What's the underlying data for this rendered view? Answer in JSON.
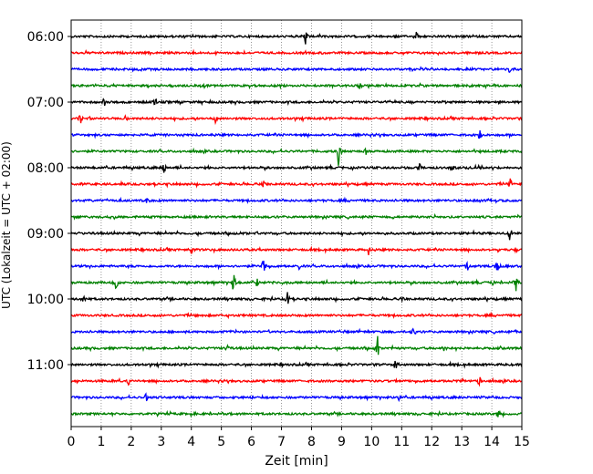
{
  "chart_data": {
    "type": "line",
    "title": "",
    "xlabel": "Zeit  [min]",
    "ylabel": "UTC (Lokalzeit = UTC + 02:00)",
    "xlim": [
      0,
      15
    ],
    "x_ticks": [
      0,
      1,
      2,
      3,
      4,
      5,
      6,
      7,
      8,
      9,
      10,
      11,
      12,
      13,
      14,
      15
    ],
    "x_tick_labels": [
      "0",
      "1",
      "2",
      "3",
      "4",
      "5",
      "6",
      "7",
      "8",
      "9",
      "10",
      "11",
      "12",
      "13",
      "14",
      "15"
    ],
    "y_tick_labels": [
      "06:00",
      "07:00",
      "08:00",
      "09:00",
      "10:00",
      "11:00"
    ],
    "grid": {
      "x": true,
      "y": false,
      "style": "dotted"
    },
    "trace_interval_min": 15,
    "trace_colors": [
      "#000000",
      "#ff0000",
      "#0000ff",
      "#008000"
    ],
    "traces": [
      {
        "start": "06:00",
        "color": "#000000",
        "events": [
          {
            "t": 7.8,
            "amp": 0.6
          },
          {
            "t": 11.5,
            "amp": 0.5
          }
        ]
      },
      {
        "start": "06:15",
        "color": "#ff0000",
        "events": []
      },
      {
        "start": "06:30",
        "color": "#0000ff",
        "events": [
          {
            "t": 14.6,
            "amp": 0.4
          }
        ]
      },
      {
        "start": "06:45",
        "color": "#008000",
        "events": [
          {
            "t": 9.6,
            "amp": 0.3
          }
        ]
      },
      {
        "start": "07:00",
        "color": "#000000",
        "events": [
          {
            "t": 1.1,
            "amp": 0.5
          },
          {
            "t": 2.8,
            "amp": 0.4
          }
        ]
      },
      {
        "start": "07:15",
        "color": "#ff0000",
        "events": [
          {
            "t": 0.3,
            "amp": 0.5
          },
          {
            "t": 1.8,
            "amp": 0.4
          },
          {
            "t": 4.8,
            "amp": 0.3
          }
        ]
      },
      {
        "start": "07:30",
        "color": "#0000ff",
        "events": [
          {
            "t": 13.6,
            "amp": 0.6
          }
        ]
      },
      {
        "start": "07:45",
        "color": "#008000",
        "events": [
          {
            "t": 8.9,
            "amp": 1.2
          },
          {
            "t": 9.8,
            "amp": 0.4
          }
        ]
      },
      {
        "start": "08:00",
        "color": "#000000",
        "events": [
          {
            "t": 3.1,
            "amp": 0.5
          },
          {
            "t": 11.6,
            "amp": 0.6
          },
          {
            "t": 12.7,
            "amp": 0.4
          }
        ]
      },
      {
        "start": "08:15",
        "color": "#ff0000",
        "events": [
          {
            "t": 6.4,
            "amp": 0.3
          },
          {
            "t": 14.6,
            "amp": 0.6
          }
        ]
      },
      {
        "start": "08:30",
        "color": "#0000ff",
        "events": [
          {
            "t": 2.5,
            "amp": 0.7
          },
          {
            "t": 13.6,
            "amp": 0.3
          }
        ]
      },
      {
        "start": "08:45",
        "color": "#008000",
        "events": []
      },
      {
        "start": "09:00",
        "color": "#000000",
        "events": [
          {
            "t": 6.3,
            "amp": 0.4
          },
          {
            "t": 14.6,
            "amp": 0.6
          }
        ]
      },
      {
        "start": "09:15",
        "color": "#ff0000",
        "events": [
          {
            "t": 4.0,
            "amp": 0.3
          },
          {
            "t": 9.9,
            "amp": 0.4
          },
          {
            "t": 14.2,
            "amp": 0.3
          }
        ]
      },
      {
        "start": "09:30",
        "color": "#0000ff",
        "events": [
          {
            "t": 6.4,
            "amp": 0.8
          },
          {
            "t": 7.6,
            "amp": 0.4
          },
          {
            "t": 13.2,
            "amp": 0.5
          },
          {
            "t": 14.2,
            "amp": 0.8
          }
        ]
      },
      {
        "start": "09:45",
        "color": "#008000",
        "events": [
          {
            "t": 1.5,
            "amp": 0.8
          },
          {
            "t": 5.4,
            "amp": 0.9
          },
          {
            "t": 6.2,
            "amp": 0.4
          },
          {
            "t": 14.0,
            "amp": 0.5
          },
          {
            "t": 14.8,
            "amp": 0.7
          }
        ]
      },
      {
        "start": "10:00",
        "color": "#000000",
        "events": [
          {
            "t": 0.4,
            "amp": 0.5
          },
          {
            "t": 7.2,
            "amp": 0.8
          },
          {
            "t": 11.0,
            "amp": 0.3
          }
        ]
      },
      {
        "start": "10:15",
        "color": "#ff0000",
        "events": []
      },
      {
        "start": "10:30",
        "color": "#0000ff",
        "events": [
          {
            "t": 11.4,
            "amp": 0.6
          },
          {
            "t": 14.8,
            "amp": 0.4
          }
        ]
      },
      {
        "start": "10:45",
        "color": "#008000",
        "events": [
          {
            "t": 5.2,
            "amp": 0.3
          },
          {
            "t": 10.2,
            "amp": 1.3
          },
          {
            "t": 12.4,
            "amp": 0.4
          }
        ]
      },
      {
        "start": "11:00",
        "color": "#000000",
        "events": [
          {
            "t": 10.8,
            "amp": 0.5
          }
        ]
      },
      {
        "start": "11:15",
        "color": "#ff0000",
        "events": [
          {
            "t": 1.9,
            "amp": 0.4
          },
          {
            "t": 13.6,
            "amp": 0.6
          }
        ]
      },
      {
        "start": "11:30",
        "color": "#0000ff",
        "events": [
          {
            "t": 2.5,
            "amp": 0.4
          },
          {
            "t": 10.9,
            "amp": 0.3
          }
        ]
      },
      {
        "start": "11:45",
        "color": "#008000",
        "events": [
          {
            "t": 14.2,
            "amp": 0.5
          }
        ]
      }
    ]
  }
}
